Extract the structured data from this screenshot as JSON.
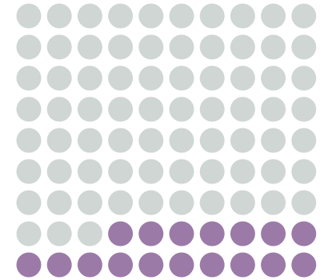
{
  "chart_data": {
    "type": "waffle",
    "series": [
      {
        "color": "#cfd6d3",
        "values": [
          73
        ]
      },
      {
        "color": "#9b7aa8",
        "values": [
          17
        ]
      }
    ]
  }
}
